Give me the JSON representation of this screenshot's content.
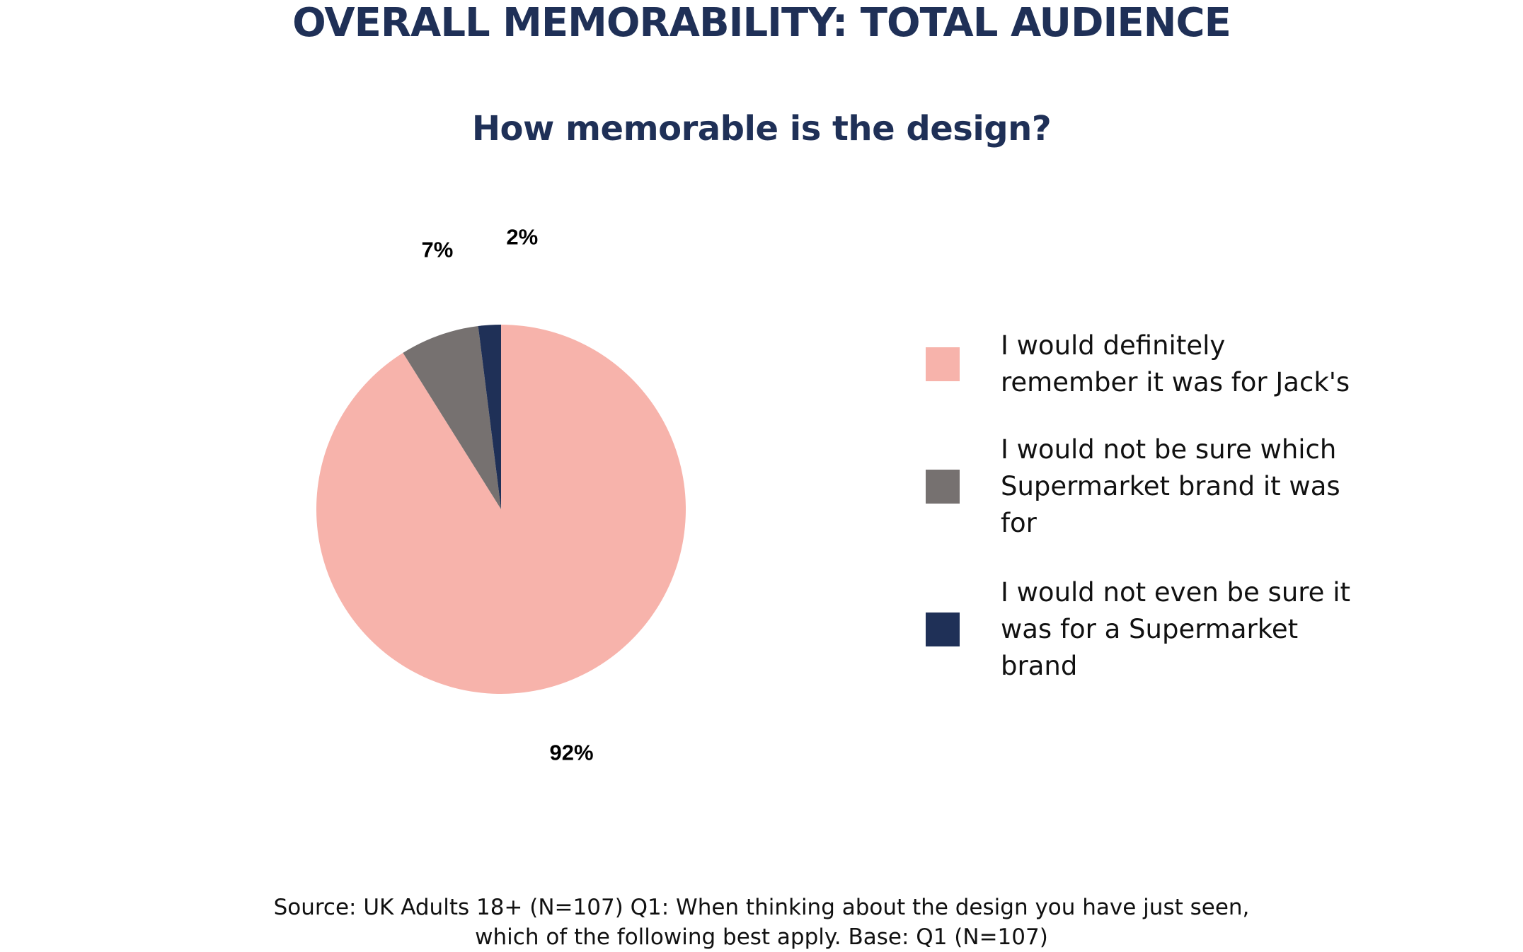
{
  "title": "OVERALL MEMORABILITY: TOTAL AUDIENCE",
  "subtitle": "How memorable is the design?",
  "chart_data": {
    "type": "pie",
    "title": "How memorable is the design?",
    "slices": [
      {
        "label": "I would definitely remember it was for Jack's",
        "value": 92,
        "display": "92%",
        "color": "#f7b3ab"
      },
      {
        "label": "I would not be sure which Supermarket brand it was for",
        "value": 7,
        "display": "7%",
        "color": "#767170"
      },
      {
        "label": "I would not even be sure it was for a Supermarket brand",
        "value": 2,
        "display": "2%",
        "color": "#1f3057"
      }
    ],
    "legend_position": "right"
  },
  "legend": {
    "items": [
      {
        "lines": [
          "I would definitely",
          "remember it was for Jack's"
        ],
        "color": "#f7b3ab"
      },
      {
        "lines": [
          "I would not be sure which",
          "Supermarket brand it was",
          "for"
        ],
        "color": "#767170"
      },
      {
        "lines": [
          "I would not even be sure it",
          "was for a Supermarket",
          "brand"
        ],
        "color": "#1f3057"
      }
    ]
  },
  "source": {
    "line1": "Source: UK Adults 18+ (N=107) Q1: When thinking about the design you have just seen,",
    "line2": "which of the following best apply. Base: Q1 (N=107)"
  }
}
